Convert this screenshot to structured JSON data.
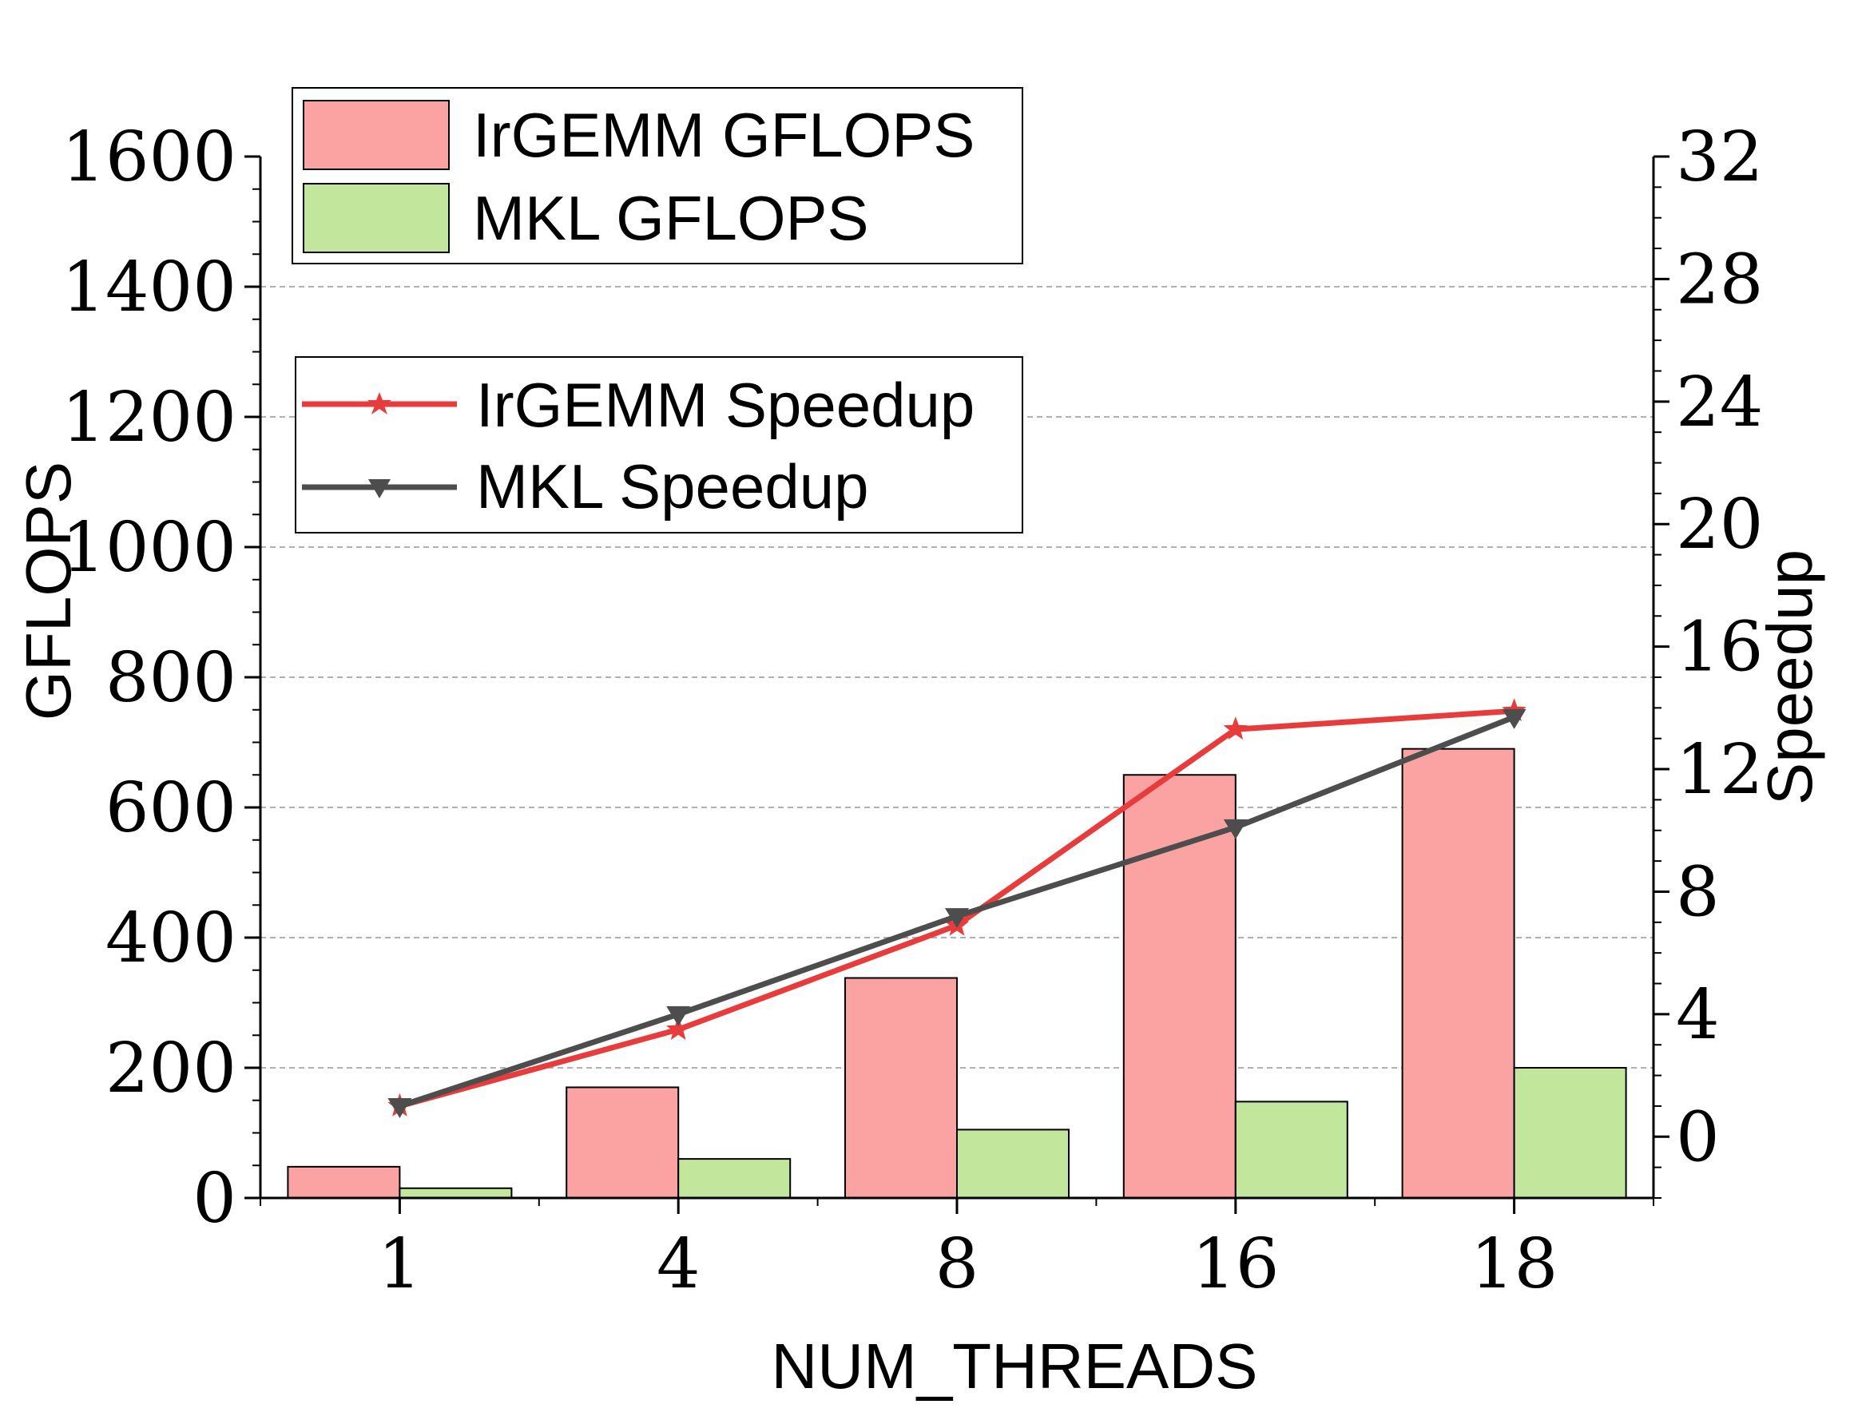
{
  "chart_data": {
    "type": "bar",
    "categories": [
      "1",
      "4",
      "8",
      "16",
      "18"
    ],
    "xlabel": "NUM_THREADS",
    "ylabel": "GFLOPS",
    "y2label": "Speedup",
    "ylim": [
      0,
      1600
    ],
    "y2lim": [
      -2,
      32
    ],
    "yticks": [
      "0",
      "200",
      "400",
      "600",
      "800",
      "1000",
      "1200",
      "1400",
      "1600"
    ],
    "y2ticks": [
      "0",
      "4",
      "8",
      "12",
      "16",
      "20",
      "24",
      "28",
      "32"
    ],
    "grid": "horizontal dashed",
    "bar_series": [
      {
        "name": "IrGEMM GFLOPS",
        "values": [
          48,
          170,
          338,
          650,
          690
        ],
        "color": "#fba3a3"
      },
      {
        "name": "MKL GFLOPS",
        "values": [
          15,
          60,
          105,
          148,
          200
        ],
        "color": "#c2e69b"
      }
    ],
    "line_series": [
      {
        "name": "IrGEMM Speedup",
        "values": [
          1.0,
          3.5,
          6.9,
          13.3,
          13.9
        ],
        "color": "#e83b3b",
        "marker": "star"
      },
      {
        "name": "MKL Speedup",
        "values": [
          1.0,
          4.0,
          7.2,
          10.1,
          13.7
        ],
        "color": "#4d4d4d",
        "marker": "triangle-down"
      }
    ],
    "legend_bars_position": "top-left",
    "legend_lines_position": "upper-left"
  }
}
